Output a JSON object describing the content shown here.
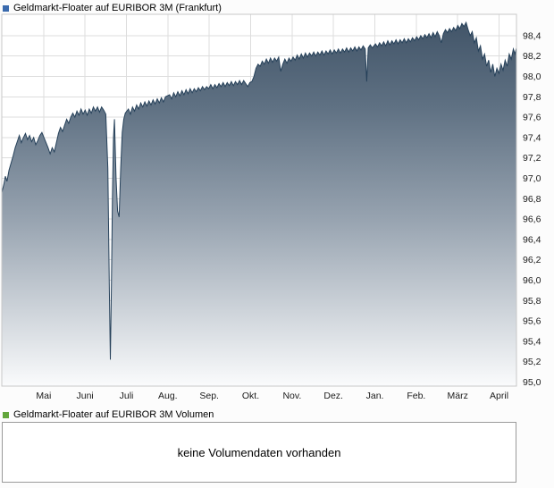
{
  "price_section": {
    "legend_label": "Geldmarkt-Floater auf EURIBOR 3M (Frankfurt)",
    "legend_color": "#3a6aad"
  },
  "volume_section": {
    "legend_label": "Geldmarkt-Floater auf EURIBOR 3M Volumen",
    "legend_color": "#62a63c",
    "empty_message": "keine Volumendaten vorhanden"
  },
  "chart_data": {
    "type": "area",
    "title": "Geldmarkt-Floater auf EURIBOR 3M (Frankfurt)",
    "xlabel": "",
    "ylabel": "",
    "grid": true,
    "legend_position": "top-left",
    "xlim": [
      0,
      1
    ],
    "ylim": [
      94.96,
      98.61
    ],
    "x_ticks": [
      {
        "label": "Mai",
        "pos": 0.0813
      },
      {
        "label": "Juni",
        "pos": 0.1617
      },
      {
        "label": "Juli",
        "pos": 0.2422
      },
      {
        "label": "Aug.",
        "pos": 0.3226
      },
      {
        "label": "Sep.",
        "pos": 0.4031
      },
      {
        "label": "Okt.",
        "pos": 0.4835
      },
      {
        "label": "Nov.",
        "pos": 0.564
      },
      {
        "label": "Dez.",
        "pos": 0.6444
      },
      {
        "label": "Jan.",
        "pos": 0.7249
      },
      {
        "label": "Feb.",
        "pos": 0.8053
      },
      {
        "label": "März",
        "pos": 0.8858
      },
      {
        "label": "April",
        "pos": 0.9662
      }
    ],
    "y_ticks": [
      {
        "label": "95,0",
        "value": 95.0
      },
      {
        "label": "95,2",
        "value": 95.2
      },
      {
        "label": "95,4",
        "value": 95.4
      },
      {
        "label": "95,6",
        "value": 95.6
      },
      {
        "label": "95,8",
        "value": 95.8
      },
      {
        "label": "96,0",
        "value": 96.0
      },
      {
        "label": "96,2",
        "value": 96.2
      },
      {
        "label": "96,4",
        "value": 96.4
      },
      {
        "label": "96,6",
        "value": 96.6
      },
      {
        "label": "96,8",
        "value": 96.8
      },
      {
        "label": "97,0",
        "value": 97.0
      },
      {
        "label": "97,2",
        "value": 97.2
      },
      {
        "label": "97,4",
        "value": 97.4
      },
      {
        "label": "97,6",
        "value": 97.6
      },
      {
        "label": "97,8",
        "value": 97.8
      },
      {
        "label": "98,0",
        "value": 98.0
      },
      {
        "label": "98,2",
        "value": 98.2
      },
      {
        "label": "98,4",
        "value": 98.4
      }
    ],
    "colors": {
      "line": "#26415a",
      "gridline": "#dddddd",
      "plot_border": "#c8c8c8",
      "plot_background": "#ffffff",
      "fill_stops": [
        [
          "0%",
          "#3f5266"
        ],
        [
          "25%",
          "#5f7183"
        ],
        [
          "55%",
          "#97a3b0"
        ],
        [
          "100%",
          "#fafbfc"
        ]
      ]
    },
    "series": [
      {
        "name": "Geldmarkt-Floater auf EURIBOR 3M (Frankfurt)",
        "x": [
          0.0,
          0.004,
          0.007,
          0.01,
          0.014,
          0.018,
          0.022,
          0.026,
          0.03,
          0.034,
          0.038,
          0.042,
          0.046,
          0.05,
          0.054,
          0.058,
          0.062,
          0.066,
          0.07,
          0.074,
          0.078,
          0.082,
          0.086,
          0.09,
          0.094,
          0.098,
          0.102,
          0.106,
          0.11,
          0.114,
          0.118,
          0.122,
          0.126,
          0.13,
          0.134,
          0.138,
          0.142,
          0.146,
          0.15,
          0.154,
          0.158,
          0.162,
          0.166,
          0.17,
          0.174,
          0.178,
          0.182,
          0.186,
          0.19,
          0.194,
          0.198,
          0.202,
          0.206,
          0.209,
          0.211,
          0.213,
          0.215,
          0.217,
          0.219,
          0.222,
          0.225,
          0.228,
          0.231,
          0.234,
          0.237,
          0.24,
          0.246,
          0.25,
          0.254,
          0.258,
          0.262,
          0.266,
          0.27,
          0.274,
          0.278,
          0.282,
          0.286,
          0.29,
          0.294,
          0.298,
          0.302,
          0.306,
          0.31,
          0.314,
          0.318,
          0.326,
          0.33,
          0.334,
          0.338,
          0.342,
          0.346,
          0.35,
          0.354,
          0.358,
          0.362,
          0.366,
          0.37,
          0.374,
          0.378,
          0.382,
          0.386,
          0.39,
          0.394,
          0.398,
          0.402,
          0.406,
          0.41,
          0.414,
          0.418,
          0.422,
          0.426,
          0.43,
          0.434,
          0.438,
          0.442,
          0.446,
          0.45,
          0.454,
          0.458,
          0.462,
          0.466,
          0.47,
          0.474,
          0.478,
          0.482,
          0.486,
          0.49,
          0.494,
          0.498,
          0.502,
          0.506,
          0.51,
          0.514,
          0.518,
          0.522,
          0.526,
          0.53,
          0.534,
          0.538,
          0.542,
          0.546,
          0.55,
          0.554,
          0.558,
          0.562,
          0.566,
          0.57,
          0.574,
          0.578,
          0.582,
          0.586,
          0.59,
          0.594,
          0.598,
          0.602,
          0.606,
          0.61,
          0.614,
          0.618,
          0.622,
          0.626,
          0.63,
          0.634,
          0.638,
          0.642,
          0.646,
          0.65,
          0.654,
          0.658,
          0.662,
          0.666,
          0.67,
          0.674,
          0.678,
          0.682,
          0.686,
          0.69,
          0.694,
          0.698,
          0.702,
          0.706,
          0.709,
          0.712,
          0.716,
          0.72,
          0.726,
          0.73,
          0.734,
          0.738,
          0.742,
          0.746,
          0.75,
          0.754,
          0.758,
          0.762,
          0.766,
          0.77,
          0.774,
          0.778,
          0.782,
          0.786,
          0.79,
          0.794,
          0.798,
          0.802,
          0.806,
          0.81,
          0.814,
          0.818,
          0.822,
          0.826,
          0.83,
          0.834,
          0.838,
          0.842,
          0.846,
          0.85,
          0.854,
          0.858,
          0.862,
          0.866,
          0.87,
          0.874,
          0.878,
          0.882,
          0.886,
          0.89,
          0.894,
          0.898,
          0.902,
          0.906,
          0.91,
          0.914,
          0.918,
          0.922,
          0.926,
          0.93,
          0.934,
          0.938,
          0.942,
          0.946,
          0.95,
          0.954,
          0.958,
          0.962,
          0.966,
          0.97,
          0.974,
          0.978,
          0.982,
          0.986,
          0.99,
          0.994,
          0.997,
          1.0
        ],
        "values": [
          96.86,
          96.94,
          97.02,
          96.97,
          97.08,
          97.15,
          97.22,
          97.3,
          97.36,
          97.42,
          97.35,
          97.4,
          97.44,
          97.38,
          97.42,
          97.36,
          97.4,
          97.33,
          97.37,
          97.42,
          97.45,
          97.4,
          97.35,
          97.3,
          97.24,
          97.3,
          97.26,
          97.35,
          97.44,
          97.5,
          97.46,
          97.52,
          97.58,
          97.54,
          97.6,
          97.64,
          97.6,
          97.66,
          97.62,
          97.68,
          97.63,
          97.67,
          97.62,
          97.68,
          97.64,
          97.7,
          97.66,
          97.7,
          97.65,
          97.7,
          97.67,
          97.63,
          97.1,
          95.9,
          95.22,
          95.95,
          96.8,
          97.4,
          97.58,
          97.0,
          96.68,
          96.62,
          97.1,
          97.45,
          97.58,
          97.64,
          97.68,
          97.63,
          97.7,
          97.66,
          97.72,
          97.68,
          97.74,
          97.7,
          97.75,
          97.71,
          97.76,
          97.72,
          97.77,
          97.73,
          97.78,
          97.74,
          97.79,
          97.75,
          97.8,
          97.82,
          97.78,
          97.84,
          97.8,
          97.85,
          97.81,
          97.86,
          97.82,
          97.87,
          97.83,
          97.88,
          97.84,
          97.88,
          97.85,
          97.89,
          97.86,
          97.9,
          97.87,
          97.9,
          97.88,
          97.92,
          97.88,
          97.92,
          97.89,
          97.93,
          97.9,
          97.94,
          97.9,
          97.94,
          97.91,
          97.95,
          97.91,
          97.95,
          97.92,
          97.96,
          97.92,
          97.96,
          97.93,
          97.9,
          97.94,
          97.95,
          98.0,
          98.08,
          98.12,
          98.1,
          98.15,
          98.12,
          98.17,
          98.13,
          98.18,
          98.14,
          98.18,
          98.15,
          98.19,
          98.05,
          98.12,
          98.17,
          98.13,
          98.18,
          98.15,
          98.19,
          98.16,
          98.21,
          98.17,
          98.22,
          98.18,
          98.23,
          98.19,
          98.23,
          98.2,
          98.24,
          98.2,
          98.24,
          98.21,
          98.25,
          98.21,
          98.25,
          98.22,
          98.26,
          98.22,
          98.26,
          98.23,
          98.27,
          98.23,
          98.27,
          98.24,
          98.28,
          98.24,
          98.28,
          98.25,
          98.29,
          98.25,
          98.29,
          98.26,
          98.3,
          98.27,
          97.95,
          98.28,
          98.31,
          98.28,
          98.32,
          98.29,
          98.33,
          98.3,
          98.34,
          98.3,
          98.35,
          98.31,
          98.35,
          98.32,
          98.36,
          98.32,
          98.36,
          98.33,
          98.37,
          98.33,
          98.37,
          98.34,
          98.38,
          98.35,
          98.39,
          98.36,
          98.4,
          98.37,
          98.41,
          98.38,
          98.42,
          98.38,
          98.43,
          98.39,
          98.44,
          98.4,
          98.33,
          98.42,
          98.46,
          98.43,
          98.47,
          98.44,
          98.48,
          98.45,
          98.5,
          98.47,
          98.52,
          98.49,
          98.53,
          98.46,
          98.4,
          98.44,
          98.33,
          98.38,
          98.25,
          98.3,
          98.17,
          98.22,
          98.1,
          98.16,
          98.04,
          98.12,
          98.0,
          98.08,
          98.03,
          98.12,
          98.06,
          98.16,
          98.1,
          98.22,
          98.17,
          98.27,
          98.22,
          98.28
        ]
      }
    ]
  }
}
